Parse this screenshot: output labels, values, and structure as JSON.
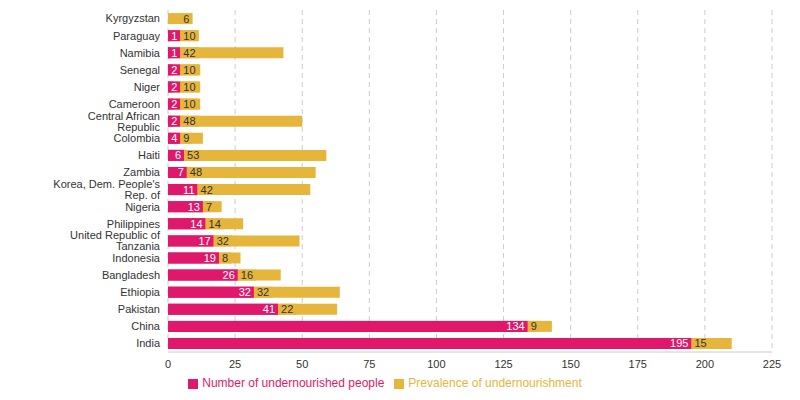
{
  "chart_data": {
    "type": "bar",
    "orientation": "horizontal",
    "stacked": true,
    "data_labels": true,
    "grid": true,
    "legend": "bottom",
    "categories": [
      "Kyrgyzstan",
      "Paraguay",
      "Namibia",
      "Senegal",
      "Niger",
      "Cameroon",
      "Central African Republic",
      "Colombia",
      "Haiti",
      "Zambia",
      "Korea, Dem. People's Rep. of",
      "Nigeria",
      "Philippines",
      "United Republic of Tanzania",
      "Indonesia",
      "Bangladesh",
      "Ethiopia",
      "Pakistan",
      "China",
      "India"
    ],
    "series": [
      {
        "name": "Number of undernourished people",
        "color": "#e0186b",
        "values": [
          0,
          1,
          1,
          2,
          2,
          2,
          2,
          4,
          6,
          7,
          11,
          13,
          14,
          17,
          19,
          26,
          32,
          41,
          134,
          195
        ]
      },
      {
        "name": "Prevalence of undernourishment",
        "color": "#e6b53c",
        "values": [
          6,
          10,
          42,
          10,
          10,
          10,
          48,
          9,
          53,
          48,
          42,
          7,
          14,
          32,
          8,
          16,
          32,
          22,
          9,
          15
        ]
      }
    ],
    "xlim": [
      0,
      225
    ],
    "xticks": [
      0,
      25,
      50,
      75,
      100,
      125,
      150,
      175,
      200,
      225
    ]
  }
}
